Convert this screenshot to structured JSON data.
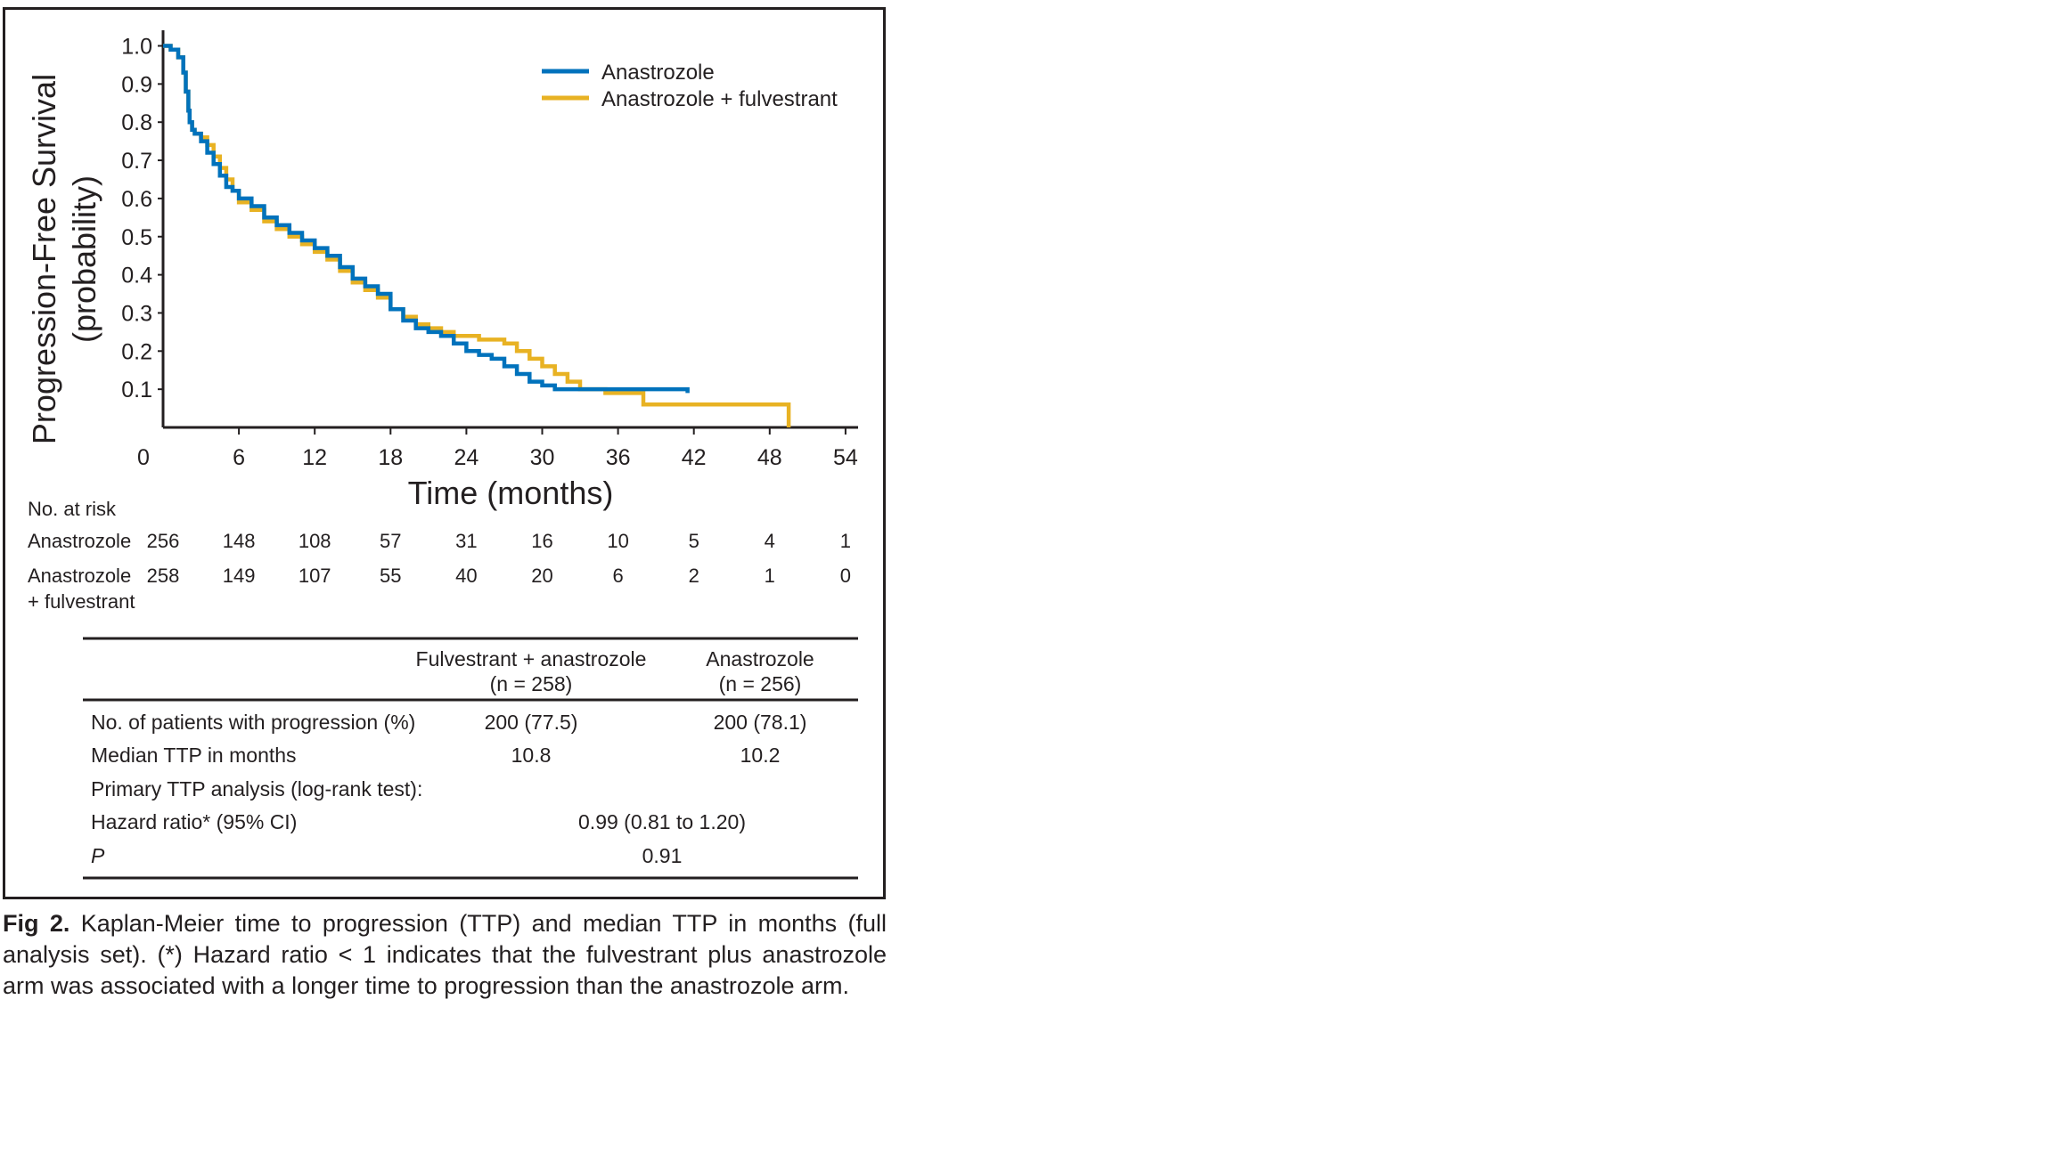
{
  "chart_data": {
    "type": "line",
    "subtype": "kaplan-meier step curve",
    "ylabel_line1": "Progression-Free Survival",
    "ylabel_line2": "(probability)",
    "xlabel": "Time (months)",
    "xlim": [
      0,
      54
    ],
    "ylim": [
      0,
      1.0
    ],
    "x_ticks": [
      "0",
      "6",
      "12",
      "18",
      "24",
      "30",
      "36",
      "42",
      "48",
      "54"
    ],
    "y_ticks": [
      "1.0",
      "0.9",
      "0.8",
      "0.7",
      "0.6",
      "0.5",
      "0.4",
      "0.3",
      "0.2",
      "0.1"
    ],
    "grid": false,
    "legend_position": "top-right",
    "series": [
      {
        "name": "Anastrozole",
        "color": "#0072bc",
        "x": [
          0,
          0.6,
          1.2,
          1.6,
          1.8,
          2.0,
          2.1,
          2.3,
          2.5,
          3.0,
          3.5,
          4.0,
          4.5,
          5.0,
          5.5,
          6.0,
          7.0,
          8.0,
          9.0,
          10.0,
          11.0,
          12.0,
          13.0,
          14.0,
          15.0,
          16.0,
          17.0,
          18.0,
          19.0,
          20.0,
          21.0,
          22.0,
          23.0,
          24.0,
          25.0,
          26.0,
          27.0,
          28.0,
          29.0,
          30.0,
          31.0,
          32.0,
          33.0,
          36.0,
          39.0,
          41.0,
          41.5
        ],
        "y": [
          1.0,
          0.99,
          0.97,
          0.93,
          0.88,
          0.83,
          0.8,
          0.78,
          0.77,
          0.75,
          0.72,
          0.69,
          0.66,
          0.63,
          0.62,
          0.6,
          0.58,
          0.55,
          0.53,
          0.51,
          0.49,
          0.47,
          0.45,
          0.42,
          0.39,
          0.37,
          0.35,
          0.31,
          0.28,
          0.26,
          0.25,
          0.24,
          0.22,
          0.2,
          0.19,
          0.18,
          0.16,
          0.14,
          0.12,
          0.11,
          0.1,
          0.1,
          0.1,
          0.1,
          0.1,
          0.1,
          0.09
        ]
      },
      {
        "name": "Anastrozole + fulvestrant",
        "color": "#e8b223",
        "x": [
          0,
          0.6,
          1.2,
          1.6,
          1.8,
          2.0,
          2.1,
          2.3,
          2.5,
          3.0,
          3.5,
          4.0,
          4.5,
          5.0,
          5.5,
          6.0,
          7.0,
          8.0,
          9.0,
          10.0,
          11.0,
          12.0,
          13.0,
          14.0,
          15.0,
          16.0,
          17.0,
          18.0,
          19.0,
          20.0,
          21.0,
          22.0,
          23.0,
          24.0,
          25.0,
          26.0,
          27.0,
          28.0,
          29.0,
          30.0,
          31.0,
          32.0,
          33.0,
          35.0,
          38.0,
          42.0,
          46.0,
          48.0,
          49.0,
          49.5
        ],
        "y": [
          1.0,
          0.99,
          0.97,
          0.93,
          0.88,
          0.83,
          0.8,
          0.78,
          0.77,
          0.76,
          0.74,
          0.71,
          0.68,
          0.65,
          0.62,
          0.59,
          0.57,
          0.54,
          0.52,
          0.5,
          0.48,
          0.46,
          0.44,
          0.41,
          0.38,
          0.36,
          0.34,
          0.31,
          0.29,
          0.27,
          0.26,
          0.25,
          0.24,
          0.24,
          0.23,
          0.23,
          0.22,
          0.2,
          0.18,
          0.16,
          0.14,
          0.12,
          0.1,
          0.09,
          0.06,
          0.06,
          0.06,
          0.06,
          0.06,
          0.0
        ]
      }
    ]
  },
  "risk_table": {
    "header": "No. at risk",
    "rows": [
      {
        "label_line1": "Anastrozole",
        "label_line2": "",
        "values": [
          "256",
          "148",
          "108",
          "57",
          "31",
          "16",
          "10",
          "5",
          "4",
          "1"
        ]
      },
      {
        "label_line1": "Anastrozole",
        "label_line2": "+ fulvestrant",
        "values": [
          "258",
          "149",
          "107",
          "55",
          "40",
          "20",
          "6",
          "2",
          "1",
          "0"
        ]
      }
    ]
  },
  "summary_table": {
    "col1_header_line1": "Fulvestrant + anastrozole",
    "col1_header_line2": "(n = 258)",
    "col2_header_line1": "Anastrozole",
    "col2_header_line2": "(n = 256)",
    "rows": [
      {
        "label": "No. of patients with progression (%)",
        "col1": "200 (77.5)",
        "col2": "200 (78.1)"
      },
      {
        "label": "Median TTP in months",
        "col1": "10.8",
        "col2": "10.2"
      },
      {
        "label": "Primary TTP analysis (log-rank test):",
        "col1": "",
        "col2": ""
      },
      {
        "label": "Hazard ratio* (95% CI)",
        "merged": "0.99 (0.81 to 1.20)"
      },
      {
        "label": "P",
        "merged": "0.91"
      }
    ]
  },
  "caption": {
    "label": "Fig 2.",
    "text": "Kaplan-Meier time to progression (TTP) and median TTP in months (full analysis set). (*) Hazard ratio < 1 indicates that the fulvestrant plus anastrozole arm was associated with a longer time to progression than the anastrozole arm."
  }
}
